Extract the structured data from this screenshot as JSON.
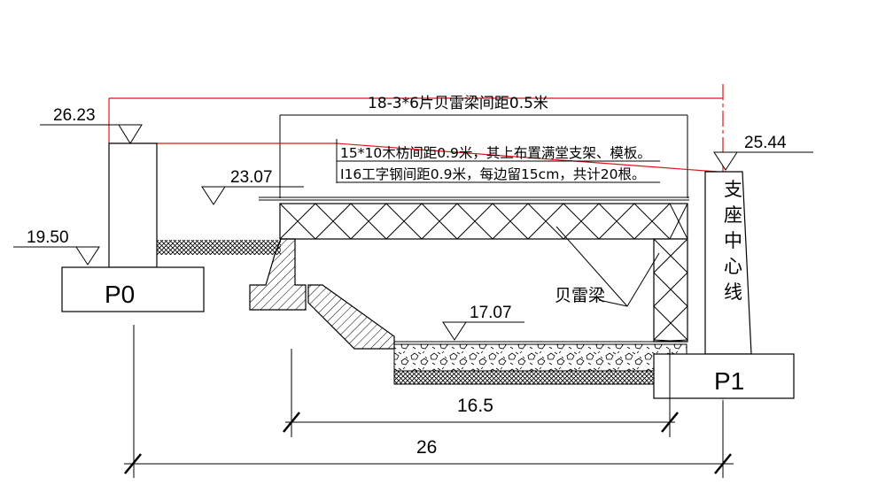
{
  "colors": {
    "line": "#000000",
    "accent": "#e0151b",
    "background": "#ffffff"
  },
  "labels": {
    "span_note": "18-3*6片贝雷梁间距0.5米",
    "timber_note": "15*10木枋间距0.9米，其上布置满堂支架、模板。",
    "steel_note": "I16工字钢间距0.9米，每边留15cm，共计20根。",
    "bailey": "贝雷梁",
    "support_center": [
      "支",
      "座",
      "中",
      "心",
      "线"
    ],
    "pier_left": "P0",
    "pier_right": "P1"
  },
  "elevations": {
    "left_top": "26.23",
    "right_top": "25.44",
    "deck": "23.07",
    "ground_left": "19.50",
    "bottom": "17.07"
  },
  "dimensions": {
    "inner": "16.5",
    "total": "26"
  }
}
